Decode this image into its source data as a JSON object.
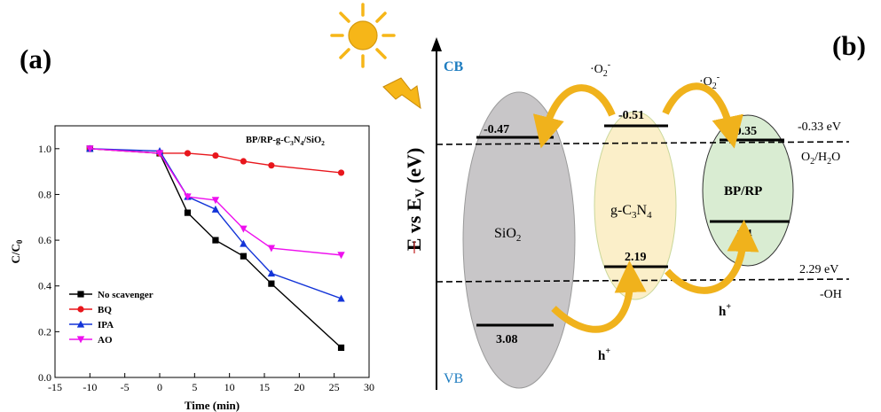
{
  "panel_a": {
    "label": "(a)"
  },
  "panel_b": {
    "label": "(b)"
  },
  "chart_data": {
    "type": "line",
    "annotation": {
      "main": "BP/RP-g-C",
      "sub1": "3",
      "mid": "N",
      "sub2": "4",
      "tail": "/SiO",
      "sub3": "2"
    },
    "xlabel": "Time (min)",
    "ylabel": {
      "main": "C/C",
      "sub": "0"
    },
    "xlim": [
      -15,
      30
    ],
    "ylim": [
      0.0,
      1.1
    ],
    "xticks": [
      -15,
      -10,
      -5,
      0,
      5,
      10,
      15,
      20,
      25,
      30
    ],
    "yticks": [
      "0.0",
      "0.2",
      "0.4",
      "0.6",
      "0.8",
      "1.0"
    ],
    "grid": false,
    "legend_position": "bottom-left",
    "x": [
      -10,
      0,
      4,
      8,
      12,
      16,
      26
    ],
    "series": [
      {
        "name": "No scavenger",
        "color": "#000000",
        "marker": "square",
        "values": [
          1.0,
          0.98,
          0.72,
          0.6,
          0.53,
          0.41,
          0.13
        ]
      },
      {
        "name": "BQ",
        "color": "#e8161c",
        "marker": "circle",
        "values": [
          1.0,
          0.98,
          0.98,
          0.97,
          0.945,
          0.927,
          0.895
        ]
      },
      {
        "name": "IPA",
        "color": "#1334d8",
        "marker": "triangle-up",
        "values": [
          1.0,
          0.99,
          0.79,
          0.735,
          0.585,
          0.455,
          0.345
        ]
      },
      {
        "name": "AO",
        "color": "#ee10ee",
        "marker": "triangle-down",
        "values": [
          1.0,
          0.98,
          0.79,
          0.775,
          0.65,
          0.565,
          0.535
        ]
      }
    ]
  },
  "diagram": {
    "cb": "CB",
    "vb": "VB",
    "axis": {
      "main": "E vs E",
      "sub": "V",
      "tail": " (eV)"
    },
    "sio2": {
      "main": "SiO",
      "sub": "2",
      "cb": "-0.47",
      "vb": "3.08",
      "color": "#c8c6c8"
    },
    "gcn": {
      "main": "g-C",
      "sub1": "3",
      "mid": "N",
      "sub2": "4",
      "cb": "-0.51",
      "vb": "2.19",
      "color": "#fbefc9"
    },
    "bprp": {
      "label": "BP/RP",
      "cb": "-0.35",
      "vb": "1.4",
      "color": "#d9ecd2"
    },
    "superoxide": {
      "main": "·O",
      "sub": "2",
      "sup": "-"
    },
    "hole": {
      "main": "h",
      "sup": "+"
    },
    "ref_top": {
      "value": "-0.33 eV",
      "main": "O",
      "sub1": "2",
      "mid": "/H",
      "sub2": "2",
      "tail": "O"
    },
    "ref_bottom": {
      "value": "2.29 eV",
      "label": "-OH"
    },
    "arrow_color": "#f0b21c",
    "sun_color": "#f6b618"
  }
}
